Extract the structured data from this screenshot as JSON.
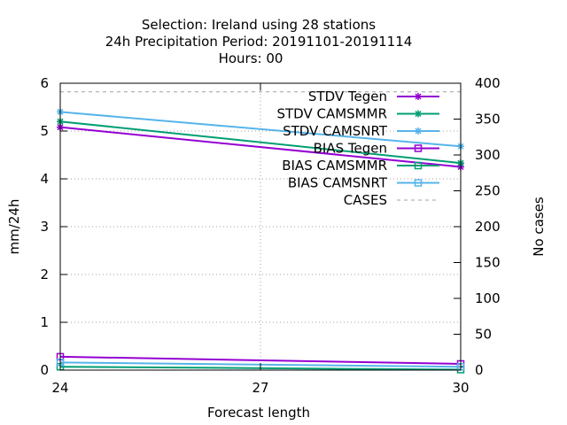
{
  "chart_data": {
    "type": "line",
    "title_lines": [
      "Selection: Ireland using    28 stations",
      "24h Precipitation   Period: 20191101-20191114",
      "Hours:  00"
    ],
    "xlabel": "Forecast length",
    "ylabel": "mm/24h",
    "y2label": "No cases",
    "x": [
      24,
      30
    ],
    "xlim": [
      24,
      30
    ],
    "ylim": [
      0,
      6
    ],
    "y2lim": [
      0,
      400
    ],
    "xticks": [
      24,
      27,
      30
    ],
    "yticks": [
      0,
      1,
      2,
      3,
      4,
      5,
      6
    ],
    "y2ticks": [
      0,
      50,
      100,
      150,
      200,
      250,
      300,
      350,
      400
    ],
    "grid": true,
    "legend_position": "top-right",
    "series": [
      {
        "name": "STDV Tegen",
        "axis": "y",
        "color": "#9400d3",
        "marker": "star",
        "dash": "",
        "values": [
          5.08,
          4.25
        ]
      },
      {
        "name": "STDV CAMSMMR",
        "axis": "y",
        "color": "#009e73",
        "marker": "star",
        "dash": "",
        "values": [
          5.2,
          4.33
        ]
      },
      {
        "name": "STDV CAMSNRT",
        "axis": "y",
        "color": "#56b4e9",
        "marker": "star",
        "dash": "",
        "values": [
          5.4,
          4.68
        ]
      },
      {
        "name": "BIAS Tegen",
        "axis": "y",
        "color": "#9400d3",
        "marker": "square",
        "dash": "",
        "values": [
          0.28,
          0.13
        ]
      },
      {
        "name": "BIAS CAMSMMR",
        "axis": "y",
        "color": "#009e73",
        "marker": "square",
        "dash": "",
        "values": [
          0.07,
          0.01
        ]
      },
      {
        "name": "BIAS CAMSNRT",
        "axis": "y",
        "color": "#56b4e9",
        "marker": "square",
        "dash": "",
        "values": [
          0.16,
          0.07
        ]
      },
      {
        "name": "CASES",
        "axis": "y2",
        "color": "#a0a0a0",
        "marker": "none",
        "dash": "4,4",
        "values": [
          388,
          388
        ]
      }
    ]
  }
}
